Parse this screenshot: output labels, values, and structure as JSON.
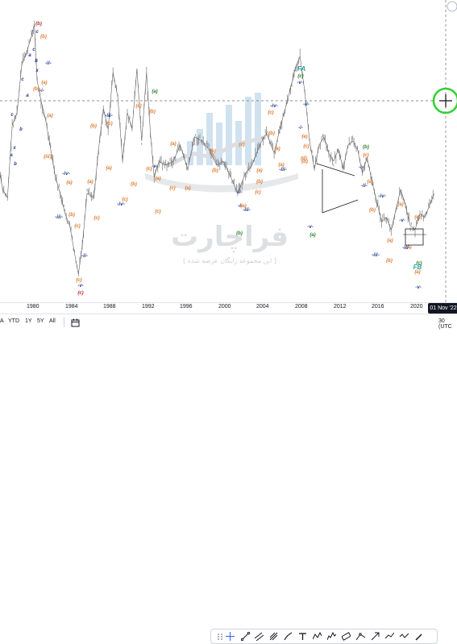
{
  "chart_data": {
    "type": "line",
    "title": "",
    "x_ticks": [
      "1980",
      "1984",
      "1988",
      "1992",
      "1996",
      "2000",
      "2004",
      "2008",
      "2012",
      "2016",
      "2020"
    ],
    "crosshair_date": "01 Nov '22",
    "series": [
      {
        "x": [
          1976.5,
          1977,
          1977.5,
          1978,
          1978.5,
          1979,
          1979.5,
          1980,
          1980.3,
          1980.6,
          1981,
          1981.5,
          1982,
          1982.5,
          1983,
          1983.5,
          1984,
          1984.5,
          1984.9,
          1985.3,
          1985.8,
          1986.5,
          1987,
          1987.5,
          1988,
          1988.5,
          1989,
          1989.5,
          1990,
          1990.5,
          1991,
          1991.5,
          1992,
          1992.4,
          1992.8,
          1993.3,
          1994,
          1994.8,
          1995.5,
          1996.3,
          1997,
          1997.8,
          1998.5,
          1999.3,
          2000,
          2000.8,
          2001.5,
          2002.3,
          2003,
          2003.8,
          2004.5,
          2005.3,
          2006,
          2006.8,
          2007.5,
          2008,
          2008.5,
          2009,
          2009.5,
          2010,
          2010.5,
          2011,
          2011.5,
          2012,
          2012.5,
          2013,
          2013.5,
          2014,
          2014.5,
          2015,
          2015.5,
          2016,
          2016.5,
          2017,
          2017.5,
          2018,
          2018.5,
          2019,
          2019.5,
          2020,
          2020.5,
          2021,
          2021.5,
          2022
        ],
        "y": [
          300,
          230,
          210,
          390,
          420,
          540,
          570,
          610,
          640,
          500,
          450,
          400,
          330,
          260,
          220,
          170,
          140,
          70,
          20,
          90,
          220,
          210,
          330,
          430,
          380,
          520,
          460,
          300,
          420,
          380,
          530,
          350,
          520,
          370,
          260,
          300,
          290,
          300,
          340,
          280,
          360,
          350,
          330,
          290,
          300,
          260,
          220,
          270,
          290,
          340,
          370,
          320,
          390,
          460,
          530,
          560,
          470,
          350,
          280,
          340,
          360,
          320,
          300,
          330,
          280,
          340,
          350,
          330,
          270,
          310,
          250,
          200,
          150,
          160,
          130,
          180,
          230,
          190,
          140,
          130,
          170,
          160,
          190,
          220
        ]
      }
    ]
  },
  "wave_labels": [
    {
      "t": "(b)",
      "c": "#c62828"
    },
    {
      "t": "(b)",
      "c": "#e07b2e"
    },
    {
      "t": "c",
      "c": "#1e3a8a"
    },
    {
      "t": "-ii-",
      "c": "#1e3a8a"
    },
    {
      "t": "a",
      "c": "#1e3a8a"
    },
    {
      "t": "c",
      "c": "#1e3a8a"
    },
    {
      "t": "b",
      "c": "#1e3a8a"
    },
    {
      "t": "x",
      "c": "#1e3a8a"
    },
    {
      "t": "-i-",
      "c": "#1e3a8a"
    },
    {
      "t": "c",
      "c": "#1e3a8a"
    },
    {
      "t": "b",
      "c": "#1e3a8a"
    },
    {
      "t": "a",
      "c": "#1e3a8a"
    },
    {
      "t": "x",
      "c": "#1e3a8a"
    },
    {
      "t": "b",
      "c": "#1e3a8a"
    },
    {
      "t": "c",
      "c": "#1e3a8a"
    },
    {
      "t": "a",
      "c": "#1e3a8a"
    },
    {
      "t": "(a)",
      "c": "#e07b2e"
    },
    {
      "t": "(b)",
      "c": "#e07b2e"
    },
    {
      "t": "(a)",
      "c": "#e07b2e"
    },
    {
      "t": "(iii)",
      "c": "#e07b2e"
    },
    {
      "t": "-iv-",
      "c": "#1e3a8a"
    },
    {
      "t": "(a)",
      "c": "#e07b2e"
    },
    {
      "t": "-iii-",
      "c": "#1e3a8a"
    },
    {
      "t": "(b)",
      "c": "#e07b2e"
    },
    {
      "t": "(c)",
      "c": "#e07b2e"
    },
    {
      "t": "-ii-",
      "c": "#1e3a8a"
    },
    {
      "t": "(c)",
      "c": "#e07b2e"
    },
    {
      "t": "-v-",
      "c": "#1e3a8a"
    },
    {
      "t": "(c)",
      "c": "#c62828"
    },
    {
      "t": "(b)",
      "c": "#e07b2e"
    },
    {
      "t": "(a)",
      "c": "#e07b2e"
    },
    {
      "t": "(c)",
      "c": "#e07b2e"
    },
    {
      "t": "-iii-",
      "c": "#1e3a8a"
    },
    {
      "t": "(c)",
      "c": "#e07b2e"
    },
    {
      "t": "(a)",
      "c": "#e07b2e"
    },
    {
      "t": "(b)",
      "c": "#e07b2e"
    },
    {
      "t": "(a)",
      "c": "#2e7d32"
    },
    {
      "t": "(a)",
      "c": "#e07b2e"
    },
    {
      "t": "(b)",
      "c": "#e07b2e"
    },
    {
      "t": "(c)",
      "c": "#e07b2e"
    },
    {
      "t": "-v-",
      "c": "#1e3a8a"
    },
    {
      "t": "(a)",
      "c": "#e07b2e"
    },
    {
      "t": "(c)",
      "c": "#e07b2e"
    },
    {
      "t": "(c)",
      "c": "#e07b2e"
    },
    {
      "t": "-iv-",
      "c": "#1e3a8a"
    },
    {
      "t": "(c)",
      "c": "#e07b2e"
    },
    {
      "t": "(a)",
      "c": "#e07b2e"
    },
    {
      "t": "(a)",
      "c": "#e07b2e"
    },
    {
      "t": "(b)",
      "c": "#e07b2e"
    },
    {
      "t": "(b)",
      "c": "#e07b2e"
    },
    {
      "t": "(c)",
      "c": "#e07b2e"
    },
    {
      "t": "-i-",
      "c": "#1e3a8a"
    },
    {
      "t": "(b)",
      "c": "#2e7d32"
    },
    {
      "t": "-ii-",
      "c": "#1e3a8a"
    },
    {
      "t": "-iii-",
      "c": "#1e3a8a"
    },
    {
      "t": "(a)",
      "c": "#e07b2e"
    },
    {
      "t": "(b)",
      "c": "#e07b2e"
    },
    {
      "t": "(c)",
      "c": "#e07b2e"
    },
    {
      "t": "(a)",
      "c": "#e07b2e"
    },
    {
      "t": "-iv-",
      "c": "#1e3a8a"
    },
    {
      "t": "FA",
      "c": "#26a69a"
    },
    {
      "t": "(c)",
      "c": "#2e7d32"
    },
    {
      "t": "-v-",
      "c": "#1e3a8a"
    },
    {
      "t": "-ii-",
      "c": "#1e3a8a"
    },
    {
      "t": "(b)",
      "c": "#e07b2e"
    },
    {
      "t": "(c)",
      "c": "#e07b2e"
    },
    {
      "t": "(a)",
      "c": "#e07b2e"
    },
    {
      "t": "-i-",
      "c": "#1e3a8a"
    },
    {
      "t": "(c)",
      "c": "#e07b2e"
    },
    {
      "t": "(e)",
      "c": "#e07b2e"
    },
    {
      "t": "(a)",
      "c": "#e07b2e"
    },
    {
      "t": "-iii-",
      "c": "#1e3a8a"
    },
    {
      "t": "(d)",
      "c": "#e07b2e"
    },
    {
      "t": "(b)",
      "c": "#e07b2e"
    },
    {
      "t": "-v-",
      "c": "#1e3a8a"
    },
    {
      "t": "(a)",
      "c": "#2e7d32"
    },
    {
      "t": "(b)",
      "c": "#2e7d32"
    },
    {
      "t": "(c)",
      "c": "#e07b2e"
    },
    {
      "t": "-i-",
      "c": "#1e3a8a"
    },
    {
      "t": "-ii-",
      "c": "#1e3a8a"
    },
    {
      "t": "(a)",
      "c": "#e07b2e"
    },
    {
      "t": "(b)",
      "c": "#e07b2e"
    },
    {
      "t": "-iv-",
      "c": "#1e3a8a"
    },
    {
      "t": "(a)",
      "c": "#e07b2e"
    },
    {
      "t": "(c)",
      "c": "#e07b2e"
    },
    {
      "t": "-iii-",
      "c": "#1e3a8a"
    },
    {
      "t": "(b)",
      "c": "#e07b2e"
    },
    {
      "t": "(a)",
      "c": "#e07b2e"
    },
    {
      "t": "(c)",
      "c": "#e07b2e"
    },
    {
      "t": "-v-",
      "c": "#1e3a8a"
    },
    {
      "t": "(c)",
      "c": "#2e7d32"
    },
    {
      "t": "FB",
      "c": "#26a69a"
    },
    {
      "t": "(a)",
      "c": "#e07b2e"
    },
    {
      "t": "-v-",
      "c": "#1e3a8a"
    },
    {
      "t": "-iii-",
      "c": "#1e3a8a"
    }
  ],
  "watermark": {
    "brand": "فراچارت",
    "tagline": "[ این مجموعه رایگان عرضه شده ]"
  },
  "range_buttons": [
    "A",
    "YTD",
    "1Y",
    "5Y",
    "All"
  ],
  "utc_label": "30 (UTC",
  "colors": {
    "price": "#8a8a8a",
    "accent_green": "#2fd12f",
    "wave_orange": "#e07b2e",
    "wave_blue": "#1e3a8a",
    "wave_red": "#c62828",
    "wave_green": "#2e7d32",
    "wave_teal": "#26a69a"
  }
}
